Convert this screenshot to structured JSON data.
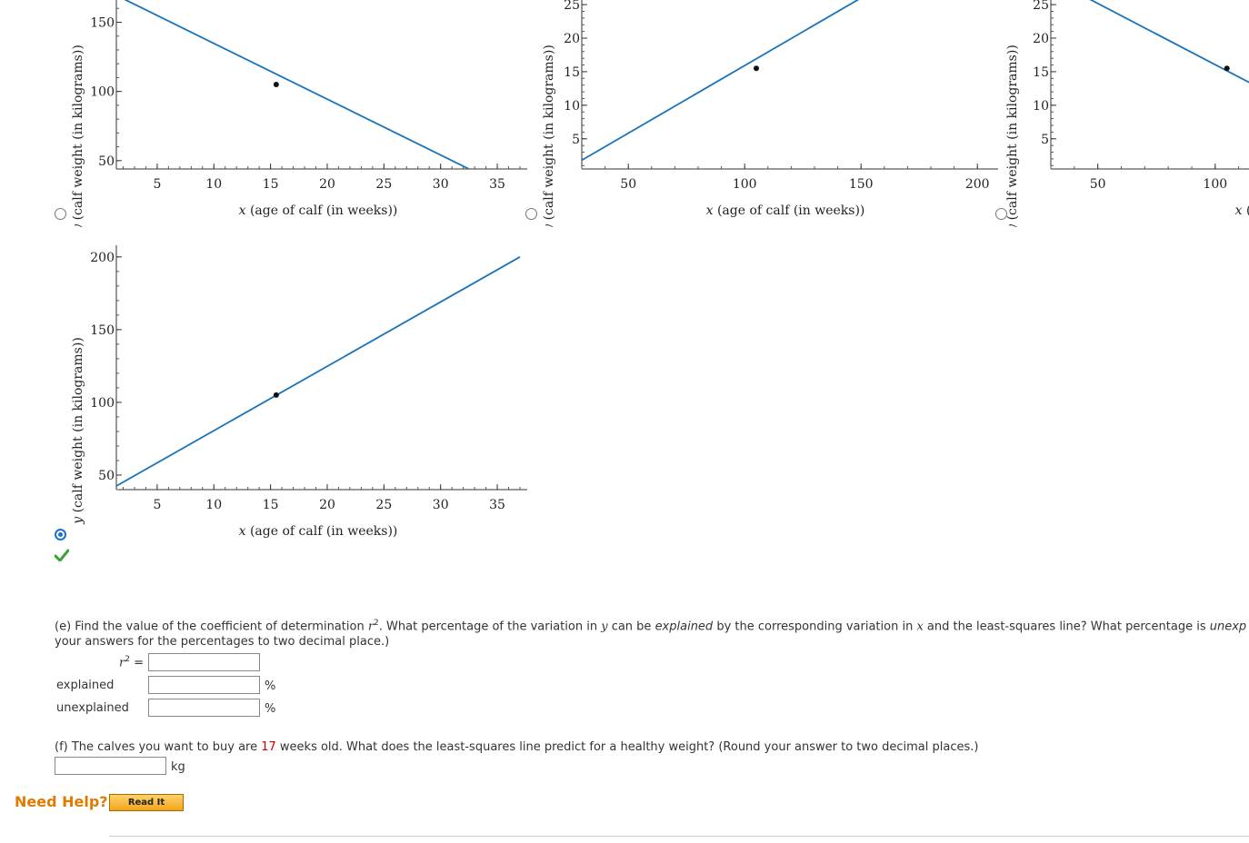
{
  "chart_data": [
    {
      "type": "line",
      "xlabel_var": "x",
      "xlabel": "(age of calf (in weeks))",
      "ylabel_var": "y",
      "ylabel": "(calf weight (in kilograms))",
      "xticks": [
        5,
        10,
        15,
        20,
        25,
        30,
        35
      ],
      "yticks": [
        50,
        100,
        150
      ],
      "xlim": [
        1.4,
        37.0
      ],
      "ylim": [
        44,
        170
      ],
      "line": [
        [
          2.0,
          167.0
        ],
        [
          32.5,
          44.0
        ]
      ],
      "point": [
        15.5,
        105.0
      ]
    },
    {
      "type": "line",
      "xlabel_var": "x",
      "xlabel": "(age of calf (in weeks))",
      "ylabel_var": "y",
      "ylabel": "(calf weight (in kilograms))",
      "xticks": [
        50,
        100,
        150,
        200
      ],
      "yticks": [
        5,
        10,
        15,
        20,
        25
      ],
      "xlim": [
        30,
        205
      ],
      "ylim": [
        0.5,
        26.5
      ],
      "line": [
        [
          30,
          1.8
        ],
        [
          155,
          27.0
        ]
      ],
      "point": [
        105,
        15.5
      ]
    },
    {
      "type": "line",
      "xlabel_var": "x",
      "xlabel": "(age of calf (in weeks))",
      "ylabel_var": "y",
      "ylabel": "(calf weight (in kilograms))",
      "xticks": [
        50,
        100
      ],
      "yticks": [
        5,
        10,
        15,
        20,
        25
      ],
      "xlim": [
        30,
        205
      ],
      "ylim": [
        0.5,
        26.5
      ],
      "line": [
        [
          40,
          27.0
        ],
        [
          120,
          12.4
        ]
      ],
      "point": [
        105,
        15.5
      ]
    },
    {
      "type": "line",
      "xlabel_var": "x",
      "xlabel": "(age of calf (in weeks))",
      "ylabel_var": "y",
      "ylabel": "(calf weight (in kilograms))",
      "xticks": [
        5,
        10,
        15,
        20,
        25,
        30,
        35
      ],
      "yticks": [
        50,
        100,
        150,
        200
      ],
      "xlim": [
        1.4,
        37.0
      ],
      "ylim": [
        40,
        208
      ],
      "line": [
        [
          1.4,
          42.5
        ],
        [
          37.0,
          200.0
        ]
      ],
      "point": [
        15.5,
        105.0
      ]
    }
  ],
  "options": {
    "selected_index": 3
  },
  "part_e": {
    "prefix": "(e) Find the value of the coefficient of determination ",
    "r": "r",
    "sup": "2",
    "mid1": ". What percentage of the variation in ",
    "y": "y",
    "mid2": " can be ",
    "explained": "explained",
    "mid3": " by the corresponding variation in ",
    "x": "x",
    "mid4": " and the least-squares line? What percentage is ",
    "unexp": "unexp",
    "line2": "your answers for the percentages to two decimal place.)",
    "r2_label_r": "r",
    "r2_label_sup": "2",
    "r2_eq": "=",
    "explained_label": "explained",
    "unexplained_label": "unexplained",
    "pct": "%",
    "r2_value": "",
    "explained_value": "",
    "unexplained_value": ""
  },
  "part_f": {
    "prefix": "(f) The calves you want to buy are ",
    "weeks": "17",
    "suffix": " weeks old. What does the least-squares line predict for a healthy weight? (Round your answer to two decimal places.)",
    "unit": "kg",
    "value": ""
  },
  "help": {
    "label": "Need Help?",
    "read_it": "Read It"
  },
  "colors": {
    "line": "#1a73b8",
    "check": "#3aa335",
    "accent_red": "#d40000"
  }
}
